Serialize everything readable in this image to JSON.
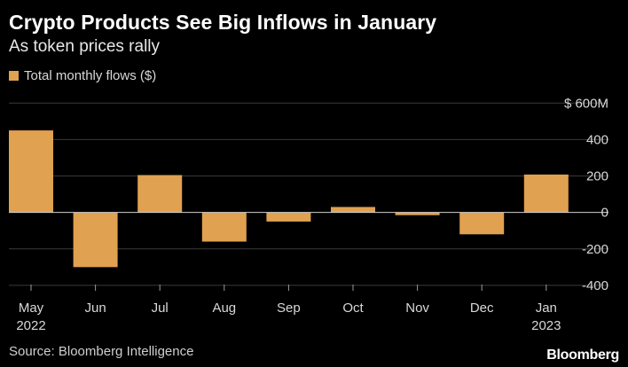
{
  "title": "Crypto Products See Big Inflows in January",
  "subtitle": "As token prices rally",
  "legend_label": "Total monthly flows ($)",
  "source": "Source: Bloomberg Intelligence",
  "brand": "Bloomberg",
  "colors": {
    "bar": "#e0a150",
    "grid": "#3a3a3a",
    "zero_line": "#d0d0d0",
    "background": "#000000"
  },
  "chart_data": {
    "type": "bar",
    "categories": [
      "May",
      "Jun",
      "Jul",
      "Aug",
      "Sep",
      "Oct",
      "Nov",
      "Dec",
      "Jan"
    ],
    "year_labels": [
      "2022",
      "",
      "",
      "",
      "",
      "",
      "",
      "",
      "2023"
    ],
    "series": [
      {
        "name": "Total monthly flows ($)",
        "values": [
          450,
          -300,
          205,
          -160,
          -50,
          30,
          -15,
          -120,
          208
        ]
      }
    ],
    "y_ticks": [
      600,
      400,
      200,
      0,
      -200,
      -400
    ],
    "y_tick_labels": [
      "$ 600M",
      "400",
      "200",
      "0",
      "-200",
      "-400"
    ],
    "ylim": [
      -420,
      650
    ],
    "grid": true,
    "legend_position": "top-left",
    "y_axis_side": "right"
  }
}
